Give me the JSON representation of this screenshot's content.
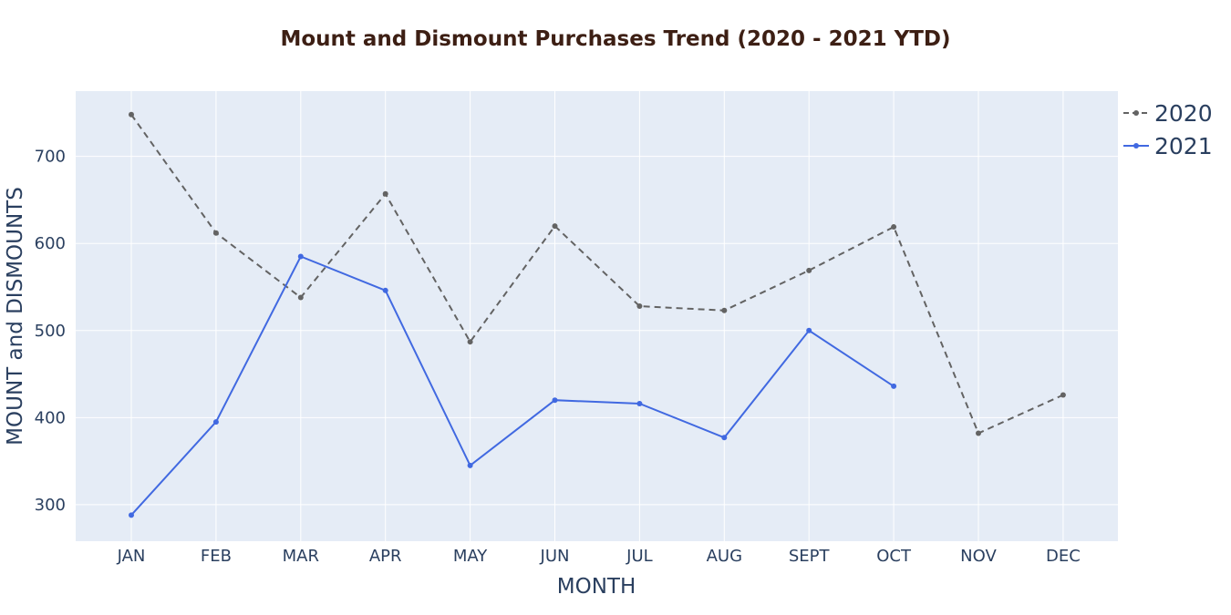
{
  "chart_data": {
    "type": "line",
    "title": "Mount and Dismount Purchases Trend  (2020 - 2021 YTD)",
    "xlabel": "MONTH",
    "ylabel": "MOUNT and DISMOUNTS",
    "categories": [
      "JAN",
      "FEB",
      "MAR",
      "APR",
      "MAY",
      "JUN",
      "JUL",
      "AUG",
      "SEPT",
      "OCT",
      "NOV",
      "DEC"
    ],
    "ylim": [
      258,
      775
    ],
    "yticks": [
      300,
      400,
      500,
      600,
      700
    ],
    "grid": true,
    "legend_position": "top-right",
    "plot_background": "#e5ecf6",
    "grid_color": "#ffffff",
    "series": [
      {
        "name": "2020",
        "color": "#636363",
        "dash": "dashed",
        "values": [
          748,
          612,
          538,
          657,
          487,
          620,
          528,
          523,
          569,
          619,
          382,
          426
        ]
      },
      {
        "name": "2021",
        "color": "#4169e1",
        "dash": "solid",
        "values": [
          288,
          395,
          585,
          546,
          345,
          420,
          416,
          377,
          500,
          436,
          null,
          null
        ]
      }
    ]
  }
}
